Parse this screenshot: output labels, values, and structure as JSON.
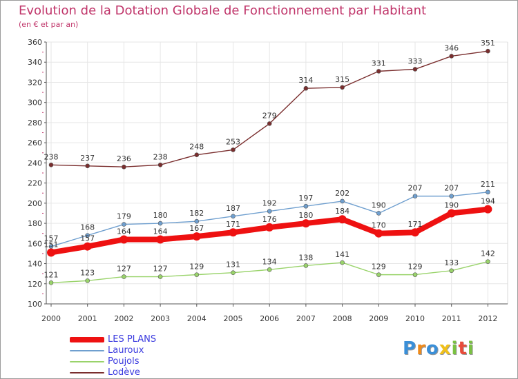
{
  "chart_data": {
    "type": "line",
    "title": "Evolution de la Dotation Globale de Fonctionnement par Habitant",
    "subtitle": "(en € et par an)",
    "xlabel": "",
    "ylabel": "",
    "x": [
      "2000",
      "2001",
      "2002",
      "2003",
      "2004",
      "2005",
      "2006",
      "2007",
      "2008",
      "2009",
      "2010",
      "2011",
      "2012"
    ],
    "ylim": [
      100,
      360
    ],
    "yticks": [
      100,
      120,
      140,
      160,
      180,
      200,
      220,
      240,
      260,
      280,
      300,
      320,
      340,
      360
    ],
    "grid": true,
    "legend_position": "bottom-left",
    "series": [
      {
        "name": "LES PLANS",
        "color": "#ee1111",
        "values": [
          151,
          157,
          164,
          164,
          167,
          171,
          176,
          180,
          184,
          170,
          171,
          190,
          194
        ]
      },
      {
        "name": "Lauroux",
        "color": "#6f9fcf",
        "values": [
          157,
          168,
          179,
          180,
          182,
          187,
          192,
          197,
          202,
          190,
          207,
          207,
          211
        ]
      },
      {
        "name": "Poujols",
        "color": "#99d36a",
        "values": [
          121,
          123,
          127,
          127,
          129,
          131,
          134,
          138,
          141,
          129,
          129,
          133,
          142
        ]
      },
      {
        "name": "Lodève",
        "color": "#7a2e2e",
        "values": [
          238,
          237,
          236,
          238,
          248,
          253,
          279,
          314,
          315,
          331,
          333,
          346,
          351
        ]
      }
    ]
  },
  "brand": {
    "letters": [
      "P",
      "r",
      "o",
      "x",
      "i",
      "t",
      "i"
    ],
    "colors": [
      "#3a8fd8",
      "#f08a1a",
      "#3a8fd8",
      "#f0c01a",
      "#7ac142",
      "#e84b3a",
      "#7ac142"
    ]
  }
}
